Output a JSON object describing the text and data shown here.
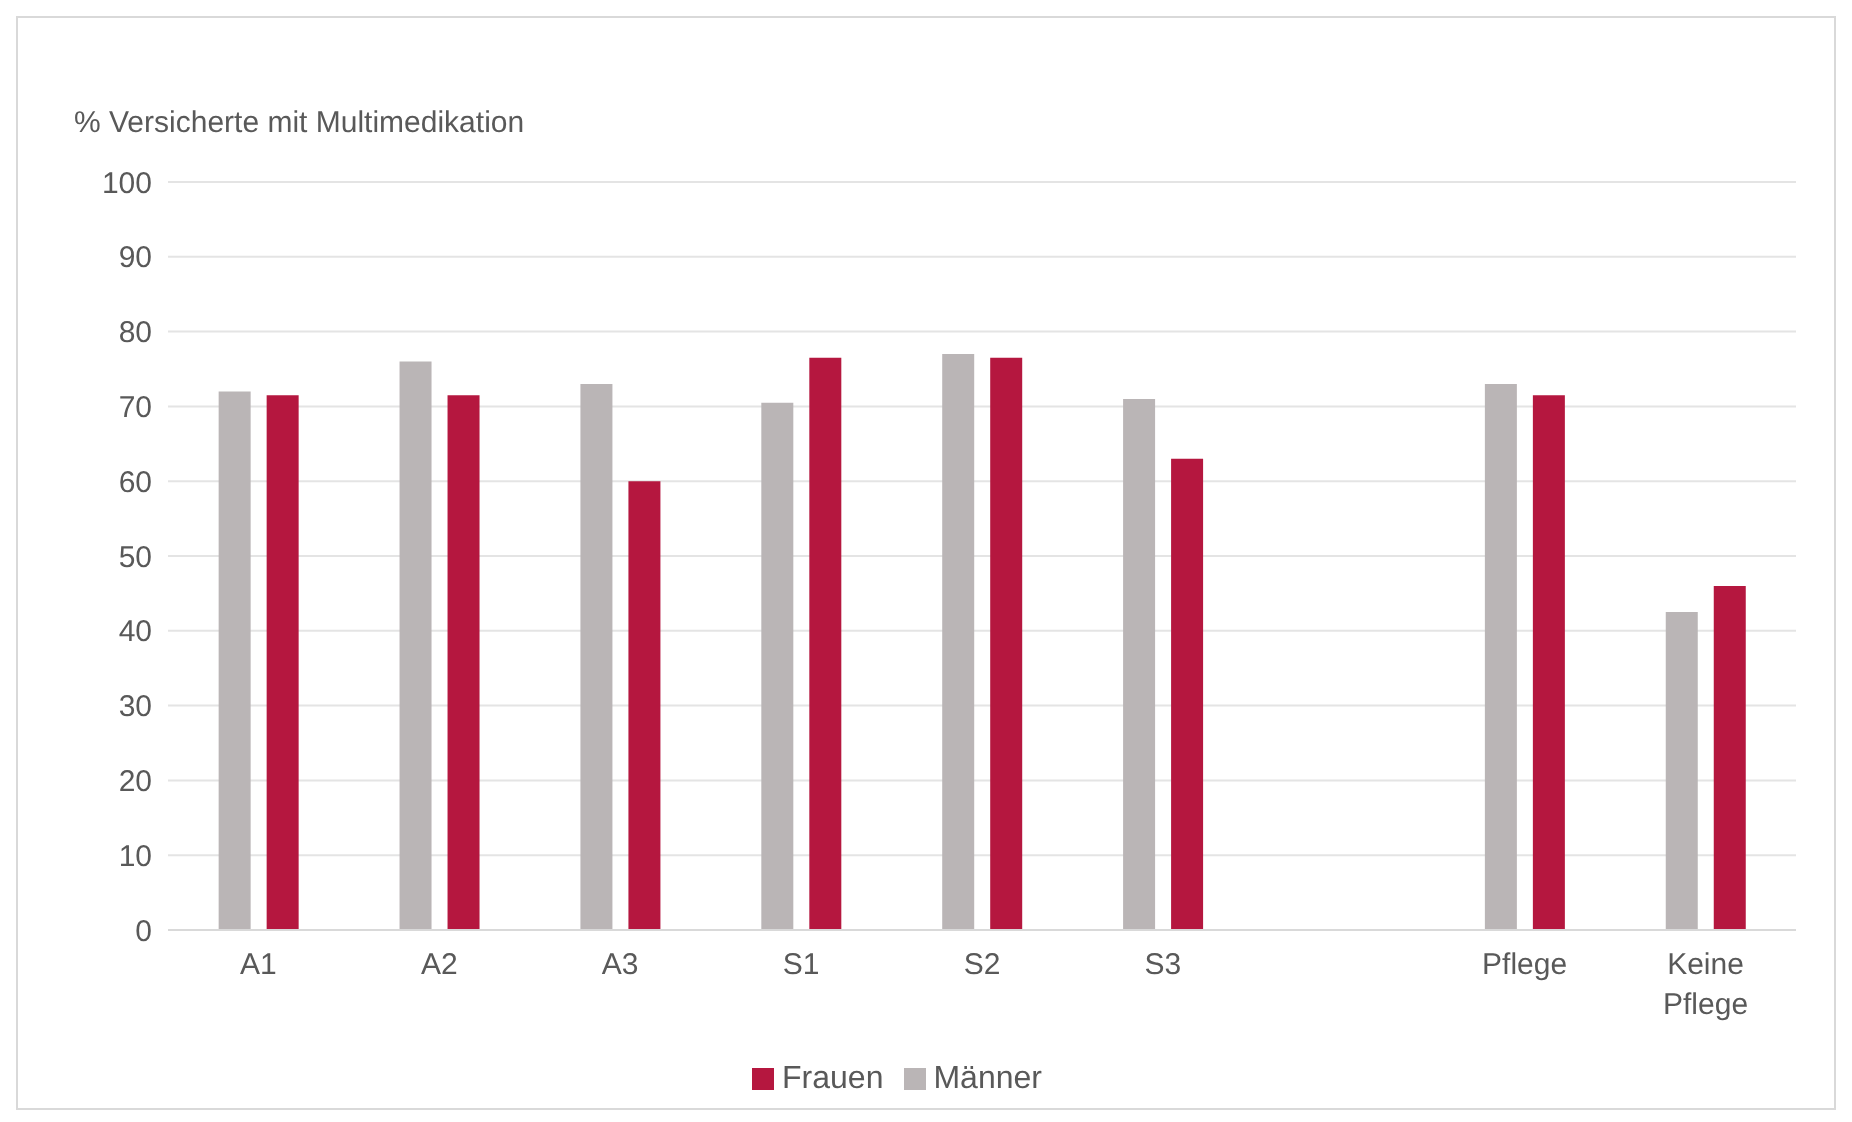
{
  "chart_data": {
    "type": "bar",
    "ylabel": "% Versicherte mit Multimedikation",
    "categories": [
      "A1",
      "A2",
      "A3",
      "S1",
      "S2",
      "S3",
      null,
      "Pflege",
      "Keine Pflege"
    ],
    "series": [
      {
        "name": "Männer",
        "color": "#bab5b6",
        "values": [
          72,
          76,
          73,
          70.5,
          77,
          71,
          null,
          73,
          42.5
        ]
      },
      {
        "name": "Frauen",
        "color": "#b5173f",
        "values": [
          71.5,
          71.5,
          60,
          76.5,
          76.5,
          63,
          null,
          71.5,
          46
        ]
      }
    ],
    "ylim": [
      0,
      100
    ],
    "yticks": [
      0,
      10,
      20,
      30,
      40,
      50,
      60,
      70,
      80,
      90,
      100
    ],
    "grid": "y",
    "legend": "bottom"
  }
}
